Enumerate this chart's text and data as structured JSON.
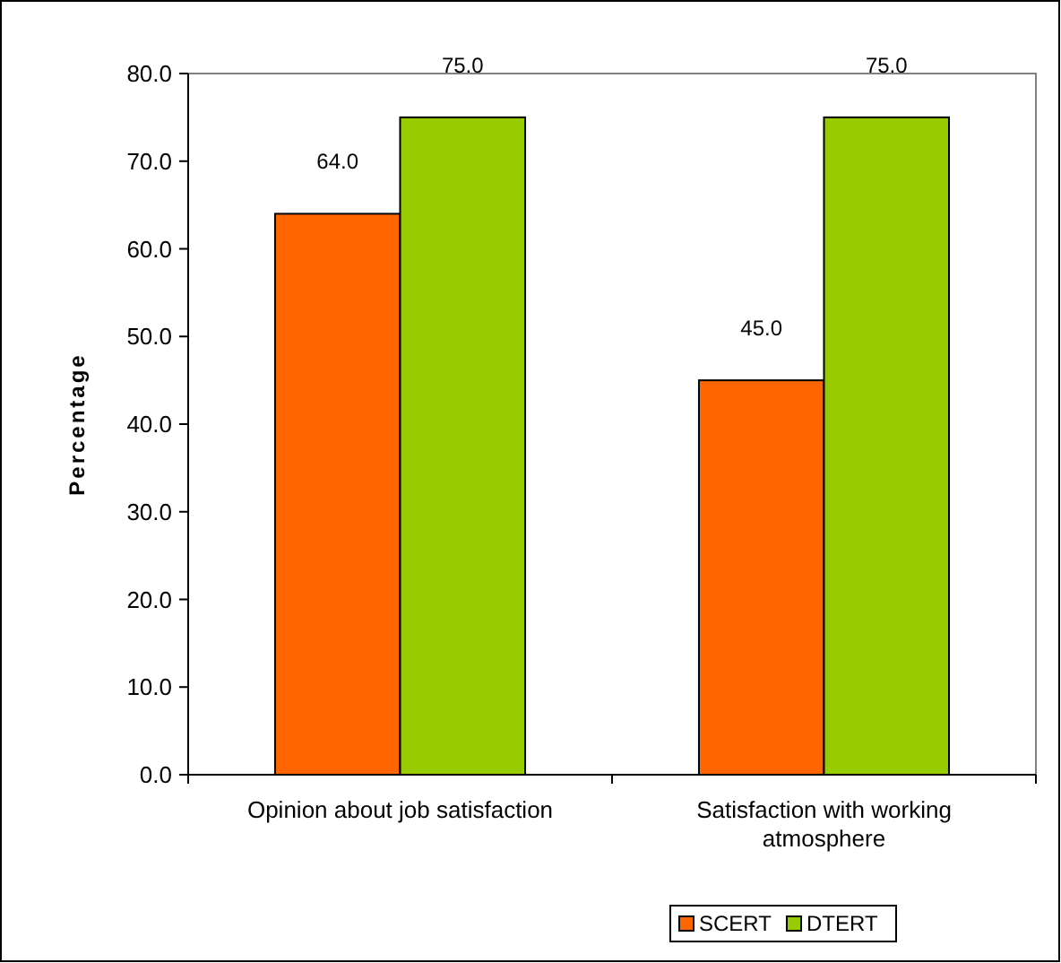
{
  "chart_data": {
    "type": "bar",
    "ylabel": "Percentage",
    "categories": [
      "Opinion about job satisfaction",
      "Satisfaction with working atmosphere"
    ],
    "series": [
      {
        "name": "SCERT",
        "color": "#ff6600",
        "values": [
          64,
          45
        ],
        "value_labels": [
          "64.0",
          "45.0"
        ]
      },
      {
        "name": "DTERT",
        "color": "#99cc00",
        "values": [
          75,
          75
        ],
        "value_labels": [
          "75.0",
          "75.0"
        ]
      }
    ],
    "ylim": [
      0,
      80
    ],
    "yticks": [
      {
        "value": 0,
        "label": "0.0"
      },
      {
        "value": 10,
        "label": "10.0"
      },
      {
        "value": 20,
        "label": "20.0"
      },
      {
        "value": 30,
        "label": "30.0"
      },
      {
        "value": 40,
        "label": "40.0"
      },
      {
        "value": 50,
        "label": "50.0"
      },
      {
        "value": 60,
        "label": "60.0"
      },
      {
        "value": 70,
        "label": "70.0"
      },
      {
        "value": 80,
        "label": "80.0"
      }
    ],
    "grid": false,
    "legend": "bottom"
  }
}
